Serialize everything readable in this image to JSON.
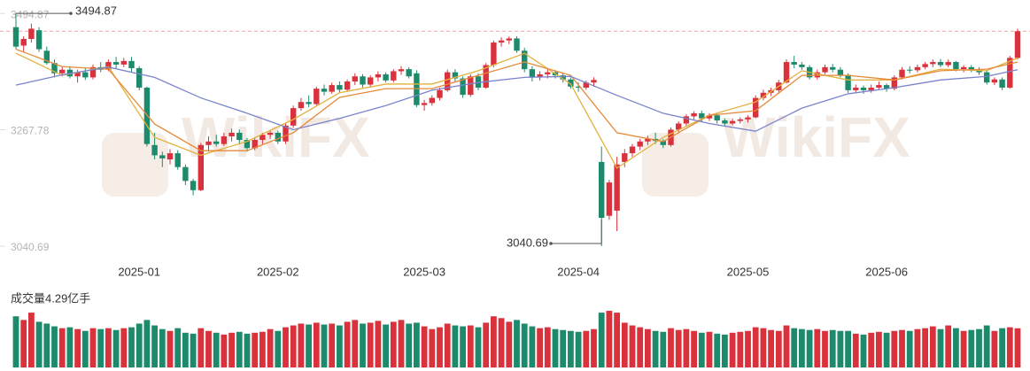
{
  "chart_data": {
    "type": "candlestick",
    "up_color": "#d9323c",
    "down_color": "#1d8a6c",
    "watermark": "WikiFX",
    "ylim": [
      3020,
      3521
    ],
    "yticks": [
      3494.87,
      3267.78,
      3040.69
    ],
    "categories": [
      null,
      null,
      null,
      null,
      null,
      null,
      null,
      null,
      null,
      null,
      null,
      null,
      null,
      null,
      null,
      null,
      "2025-01",
      null,
      null,
      null,
      null,
      null,
      null,
      null,
      null,
      null,
      null,
      null,
      null,
      null,
      null,
      null,
      null,
      null,
      "2025-02",
      null,
      null,
      null,
      null,
      null,
      null,
      null,
      null,
      null,
      null,
      null,
      null,
      null,
      null,
      null,
      null,
      null,
      null,
      "2025-03",
      null,
      null,
      null,
      null,
      null,
      null,
      null,
      null,
      null,
      null,
      null,
      null,
      null,
      null,
      null,
      null,
      null,
      null,
      null,
      "2025-04",
      null,
      null,
      null,
      null,
      null,
      null,
      null,
      null,
      null,
      null,
      null,
      null,
      null,
      null,
      null,
      null,
      null,
      null,
      null,
      null,
      null,
      "2025-05",
      null,
      null,
      null,
      null,
      null,
      null,
      null,
      null,
      null,
      null,
      null,
      null,
      null,
      null,
      null,
      null,
      null,
      "2025-06",
      null,
      null,
      null,
      null,
      null,
      null,
      null,
      null,
      null,
      null,
      null,
      null,
      null,
      null,
      null,
      null,
      null
    ],
    "candles": [
      [
        3468,
        3494.87,
        3425,
        3430
      ],
      [
        3432,
        3450,
        3420,
        3445
      ],
      [
        3445,
        3475,
        3438,
        3465
      ],
      [
        3462,
        3468,
        3420,
        3425
      ],
      [
        3422,
        3430,
        3395,
        3398
      ],
      [
        3398,
        3405,
        3370,
        3378
      ],
      [
        3378,
        3390,
        3372,
        3385
      ],
      [
        3385,
        3392,
        3368,
        3372
      ],
      [
        3372,
        3385,
        3360,
        3380
      ],
      [
        3380,
        3388,
        3365,
        3370
      ],
      [
        3370,
        3395,
        3366,
        3390
      ],
      [
        3390,
        3400,
        3380,
        3385
      ],
      [
        3385,
        3405,
        3382,
        3400
      ],
      [
        3400,
        3410,
        3388,
        3395
      ],
      [
        3395,
        3408,
        3390,
        3402
      ],
      [
        3402,
        3410,
        3380,
        3388
      ],
      [
        3388,
        3392,
        3345,
        3350
      ],
      [
        3350,
        3352,
        3235,
        3240
      ],
      [
        3238,
        3262,
        3210,
        3218
      ],
      [
        3218,
        3225,
        3195,
        3212
      ],
      [
        3210,
        3230,
        3200,
        3222
      ],
      [
        3222,
        3228,
        3190,
        3195
      ],
      [
        3195,
        3200,
        3160,
        3168
      ],
      [
        3168,
        3172,
        3140,
        3150
      ],
      [
        3150,
        3242,
        3148,
        3238
      ],
      [
        3238,
        3255,
        3225,
        3245
      ],
      [
        3245,
        3258,
        3235,
        3240
      ],
      [
        3240,
        3262,
        3236,
        3255
      ],
      [
        3255,
        3270,
        3245,
        3262
      ],
      [
        3262,
        3268,
        3240,
        3248
      ],
      [
        3248,
        3252,
        3225,
        3232
      ],
      [
        3232,
        3252,
        3228,
        3248
      ],
      [
        3248,
        3262,
        3240,
        3258
      ],
      [
        3258,
        3268,
        3250,
        3262
      ],
      [
        3262,
        3266,
        3240,
        3245
      ],
      [
        3245,
        3280,
        3240,
        3276
      ],
      [
        3276,
        3315,
        3272,
        3310
      ],
      [
        3310,
        3330,
        3305,
        3322
      ],
      [
        3322,
        3335,
        3312,
        3318
      ],
      [
        3318,
        3352,
        3315,
        3348
      ],
      [
        3348,
        3356,
        3335,
        3342
      ],
      [
        3342,
        3360,
        3338,
        3355
      ],
      [
        3355,
        3362,
        3340,
        3346
      ],
      [
        3346,
        3366,
        3342,
        3362
      ],
      [
        3362,
        3378,
        3355,
        3372
      ],
      [
        3372,
        3376,
        3350,
        3356
      ],
      [
        3356,
        3374,
        3352,
        3370
      ],
      [
        3370,
        3382,
        3362,
        3376
      ],
      [
        3376,
        3380,
        3360,
        3364
      ],
      [
        3364,
        3386,
        3360,
        3382
      ],
      [
        3382,
        3392,
        3375,
        3386
      ],
      [
        3386,
        3390,
        3368,
        3372
      ],
      [
        3378,
        3384,
        3312,
        3316
      ],
      [
        3316,
        3326,
        3305,
        3320
      ],
      [
        3320,
        3335,
        3315,
        3330
      ],
      [
        3330,
        3350,
        3325,
        3345
      ],
      [
        3345,
        3385,
        3342,
        3380
      ],
      [
        3380,
        3386,
        3362,
        3368
      ],
      [
        3368,
        3372,
        3330,
        3336
      ],
      [
        3336,
        3376,
        3332,
        3372
      ],
      [
        3372,
        3378,
        3345,
        3350
      ],
      [
        3350,
        3398,
        3348,
        3394
      ],
      [
        3394,
        3442,
        3390,
        3438
      ],
      [
        3438,
        3448,
        3430,
        3442
      ],
      [
        3442,
        3450,
        3435,
        3446
      ],
      [
        3446,
        3450,
        3418,
        3422
      ],
      [
        3422,
        3428,
        3380,
        3386
      ],
      [
        3386,
        3392,
        3362,
        3370
      ],
      [
        3370,
        3382,
        3364,
        3376
      ],
      [
        3376,
        3386,
        3368,
        3380
      ],
      [
        3380,
        3384,
        3368,
        3374
      ],
      [
        3374,
        3378,
        3360,
        3366
      ],
      [
        3366,
        3370,
        3348,
        3352
      ],
      [
        3352,
        3360,
        3342,
        3350
      ],
      [
        3350,
        3364,
        3346,
        3360
      ],
      [
        3360,
        3370,
        3352,
        3365
      ],
      [
        3205,
        3235,
        3040.69,
        3096
      ],
      [
        3100,
        3170,
        3092,
        3165
      ],
      [
        3110,
        3215,
        3070,
        3200
      ],
      [
        3205,
        3230,
        3195,
        3222
      ],
      [
        3222,
        3240,
        3215,
        3235
      ],
      [
        3235,
        3250,
        3228,
        3245
      ],
      [
        3245,
        3256,
        3238,
        3250
      ],
      [
        3250,
        3262,
        3240,
        3246
      ],
      [
        3246,
        3250,
        3232,
        3238
      ],
      [
        3238,
        3272,
        3235,
        3268
      ],
      [
        3268,
        3284,
        3262,
        3280
      ],
      [
        3280,
        3298,
        3275,
        3294
      ],
      [
        3294,
        3304,
        3288,
        3300
      ],
      [
        3300,
        3305,
        3284,
        3290
      ],
      [
        3290,
        3300,
        3285,
        3296
      ],
      [
        3296,
        3300,
        3280,
        3286
      ],
      [
        3286,
        3290,
        3276,
        3280
      ],
      [
        3280,
        3290,
        3276,
        3285
      ],
      [
        3285,
        3292,
        3280,
        3288
      ],
      [
        3288,
        3296,
        3282,
        3292
      ],
      [
        3292,
        3335,
        3290,
        3330
      ],
      [
        3330,
        3346,
        3325,
        3340
      ],
      [
        3340,
        3350,
        3334,
        3345
      ],
      [
        3345,
        3365,
        3340,
        3360
      ],
      [
        3360,
        3405,
        3358,
        3400
      ],
      [
        3400,
        3412,
        3388,
        3395
      ],
      [
        3395,
        3400,
        3385,
        3390
      ],
      [
        3390,
        3394,
        3366,
        3370
      ],
      [
        3370,
        3385,
        3366,
        3380
      ],
      [
        3380,
        3395,
        3376,
        3390
      ],
      [
        3390,
        3396,
        3380,
        3385
      ],
      [
        3385,
        3390,
        3370,
        3375
      ],
      [
        3375,
        3378,
        3340,
        3345
      ],
      [
        3345,
        3356,
        3340,
        3350
      ],
      [
        3350,
        3354,
        3338,
        3345
      ],
      [
        3345,
        3356,
        3340,
        3350
      ],
      [
        3350,
        3362,
        3346,
        3355
      ],
      [
        3355,
        3358,
        3342,
        3348
      ],
      [
        3348,
        3374,
        3345,
        3370
      ],
      [
        3370,
        3390,
        3366,
        3385
      ],
      [
        3385,
        3392,
        3378,
        3384
      ],
      [
        3384,
        3395,
        3380,
        3390
      ],
      [
        3390,
        3400,
        3386,
        3396
      ],
      [
        3396,
        3405,
        3390,
        3400
      ],
      [
        3400,
        3406,
        3390,
        3394
      ],
      [
        3394,
        3405,
        3390,
        3400
      ],
      [
        3400,
        3402,
        3382,
        3386
      ],
      [
        3386,
        3394,
        3380,
        3390
      ],
      [
        3390,
        3394,
        3380,
        3384
      ],
      [
        3384,
        3390,
        3375,
        3380
      ],
      [
        3380,
        3384,
        3356,
        3360
      ],
      [
        3360,
        3370,
        3355,
        3366
      ],
      [
        3366,
        3370,
        3345,
        3350
      ],
      [
        3350,
        3412,
        3348,
        3408
      ],
      [
        3408,
        3465,
        3405,
        3460
      ]
    ],
    "ma_lines": [
      {
        "color": "#e3b23c",
        "x": [
          0,
          6,
          12,
          18,
          24,
          30,
          36,
          42,
          48,
          54,
          60,
          66,
          72,
          78,
          84,
          90,
          96,
          102,
          108,
          114,
          120,
          126,
          130
        ],
        "values": [
          3417,
          3374,
          3391,
          3253,
          3218,
          3245,
          3288,
          3340,
          3357,
          3357,
          3383,
          3417,
          3357,
          3193,
          3253,
          3296,
          3322,
          3383,
          3365,
          3365,
          3386,
          3383,
          3408
        ]
      },
      {
        "color": "#e58a3a",
        "x": [
          0,
          6,
          12,
          18,
          24,
          30,
          36,
          42,
          48,
          54,
          60,
          66,
          72,
          78,
          84,
          90,
          96,
          102,
          108,
          114,
          120,
          126,
          130
        ],
        "values": [
          3425,
          3391,
          3386,
          3279,
          3227,
          3227,
          3262,
          3331,
          3348,
          3348,
          3374,
          3400,
          3374,
          3262,
          3245,
          3296,
          3305,
          3374,
          3374,
          3365,
          3383,
          3386,
          3400
        ]
      },
      {
        "color": "#7a84cc",
        "x": [
          0,
          6,
          12,
          18,
          24,
          30,
          36,
          42,
          48,
          54,
          60,
          66,
          72,
          78,
          84,
          90,
          96,
          102,
          108,
          114,
          120,
          126,
          130
        ],
        "values": [
          3355,
          3375,
          3390,
          3370,
          3330,
          3300,
          3268,
          3290,
          3315,
          3345,
          3360,
          3370,
          3372,
          3335,
          3300,
          3280,
          3265,
          3310,
          3338,
          3350,
          3365,
          3372,
          3385
        ]
      }
    ],
    "volume_label": "成交量4.29亿手",
    "volume_ylim": [
      0,
      6.3
    ],
    "volumes": [
      5.6,
      5.2,
      6.0,
      5.0,
      4.8,
      4.5,
      4.3,
      4.4,
      4.2,
      4.0,
      4.3,
      4.2,
      4.3,
      4.1,
      4.3,
      4.4,
      4.8,
      5.2,
      4.6,
      4.2,
      4.0,
      4.3,
      3.8,
      3.7,
      4.3,
      4.0,
      3.8,
      3.6,
      3.8,
      3.9,
      3.7,
      3.8,
      3.9,
      4.2,
      4.0,
      4.4,
      4.6,
      4.8,
      4.7,
      4.9,
      4.7,
      4.8,
      4.6,
      5.0,
      5.2,
      4.8,
      4.9,
      5.1,
      4.7,
      5.0,
      5.2,
      4.8,
      4.9,
      4.5,
      4.2,
      4.4,
      4.8,
      4.6,
      4.5,
      4.6,
      4.4,
      4.9,
      5.6,
      5.4,
      5.0,
      5.2,
      4.8,
      4.5,
      4.3,
      4.4,
      4.2,
      4.1,
      4.0,
      3.9,
      4.0,
      4.2,
      6.0,
      6.2,
      6.0,
      4.9,
      4.6,
      4.4,
      4.2,
      4.0,
      3.9,
      4.3,
      4.1,
      4.2,
      4.0,
      3.8,
      3.9,
      3.7,
      3.6,
      3.8,
      3.9,
      4.0,
      4.4,
      4.3,
      4.1,
      4.0,
      4.6,
      4.3,
      4.2,
      4.1,
      4.2,
      4.0,
      4.1,
      4.0,
      4.0,
      3.7,
      3.6,
      3.8,
      3.9,
      3.8,
      4.0,
      4.1,
      4.0,
      4.2,
      4.3,
      4.5,
      4.2,
      4.6,
      4.3,
      4.0,
      4.1,
      4.2,
      4.6,
      4.0,
      4.3,
      4.4,
      4.29
    ]
  }
}
